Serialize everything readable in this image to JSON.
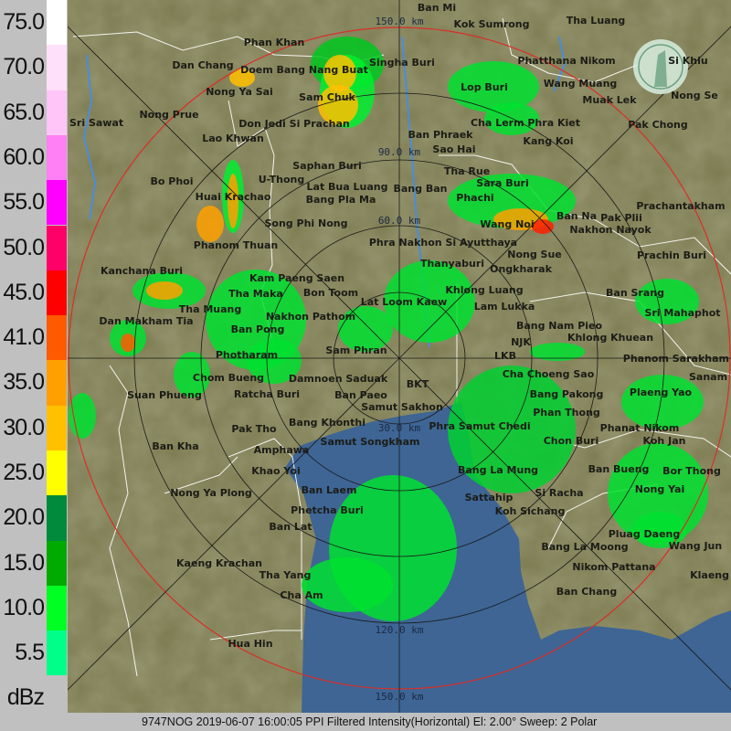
{
  "legend": {
    "unit": "dBz",
    "bins": [
      {
        "label": "75.0",
        "color": "#ffffff"
      },
      {
        "label": "70.0",
        "color": "#ffe0fa"
      },
      {
        "label": "65.0",
        "color": "#ffc4f8"
      },
      {
        "label": "60.0",
        "color": "#ff80f4"
      },
      {
        "label": "55.0",
        "color": "#ff00ff"
      },
      {
        "label": "50.0",
        "color": "#ff0068"
      },
      {
        "label": "45.0",
        "color": "#ff0000"
      },
      {
        "label": "41.0",
        "color": "#ff5a00"
      },
      {
        "label": "35.0",
        "color": "#ffa000"
      },
      {
        "label": "30.0",
        "color": "#ffc000"
      },
      {
        "label": "25.0",
        "color": "#ffff00"
      },
      {
        "label": "20.0",
        "color": "#008a3c"
      },
      {
        "label": "15.0",
        "color": "#00aa00"
      },
      {
        "label": "10.0",
        "color": "#00ff22"
      },
      {
        "label": "5.5",
        "color": "#00ff88"
      }
    ]
  },
  "caption": "9747NOG 2019-06-07 16:00:05 PPI Filtered Intensity(Horizontal)  El: 2.00°  Sweep: 2 Polar",
  "range_labels": [
    "150.0 km",
    "90.0 km",
    "60.0 km",
    "30.0 km",
    "120.0 km",
    "150.0 km"
  ],
  "colors": {
    "land": "#7b7a50",
    "sea": "#3e6594",
    "max_range_ring": "#d8302a",
    "ring": "#1a1a1a",
    "border": "#ffffff",
    "river": "#4a8cdc"
  },
  "logo": "radar-agency-seal-icon",
  "places": [
    "Dan Chang",
    "Phan Khan",
    "Doem Bang Nang Buat",
    "Nong Ya Sai",
    "Sam Chuk",
    "Don Jedi Si Prachan",
    "Nong Prue",
    "Sri Sawat",
    "Lao Khwan",
    "Bo Phoi",
    "U-Thong",
    "Huai Krachao",
    "Saphan Buri",
    "Bang Pla Ma",
    "Phanom Thuan",
    "Song Phi Nong",
    "Kanchana Buri",
    "Kam Paeng Saen",
    "Tha Maka",
    "Tha Muang",
    "Bon Toom",
    "Dan Makham Tia",
    "Ban Pong",
    "Nakhon Pathom",
    "Photharam",
    "Sam Phran",
    "Ban Mi",
    "Kok Sumrong",
    "Tha Luang",
    "Phatthana Nikom",
    "Si Khiu",
    "Singha Buri",
    "Wang Muang",
    "Muak Lek",
    "Nong Se",
    "Lop Buri",
    "Pak Chong",
    "Cha Lerm Phra Kiet",
    "Ban Phraek",
    "Sao Hai",
    "Kang Koi",
    "Tha Rue",
    "Sara Buri",
    "Phachi",
    "Bang Ban",
    "Phra Nakhon Si Ayutthaya",
    "Ban Na",
    "Nakhon Nayok",
    "Pak Plii",
    "Prachantakham",
    "Wang Noi",
    "Nong Sue",
    "Ongkharak",
    "Khlong Luang",
    "Prachin Buri",
    "Thanyaburi",
    "Lam Lukka",
    "Ban Srang",
    "Bang Nam Pieo",
    "Sri Mahaphot",
    "NJK",
    "LKB",
    "Khlong Khuean",
    "Phanom Sarakham",
    "Cha Choeng Sao",
    "Lat Bua Luang",
    "Lat Loom Kaew",
    "Chom Bueng",
    "Suan Phueng",
    "Ratcha Buri",
    "Damnoen Saduak",
    "Ban Paeo",
    "Samut Sakhon",
    "Bang Khonthi",
    "Samut Songkham",
    "Amphawa",
    "Pak Tho",
    "Ban Kha",
    "Khao Yoi",
    "Nong Ya Plong",
    "Ban Laem",
    "Phetcha Buri",
    "Ban Lat",
    "Kaeng Krachan",
    "Tha Yang",
    "Cha Am",
    "Hua Hin",
    "BKT",
    "Phra Samut Chedi",
    "Bang Pakong",
    "Plaeng Yao",
    "Sanam",
    "Phan Thong",
    "Phanat Nikom",
    "Koh Jan",
    "Chon Buri",
    "Ban Bueng",
    "Bor Thong",
    "Bang La Mung",
    "Si Racha",
    "Koh Sichang",
    "Sattahip",
    "Nong Yai",
    "Pluag Daeng",
    "Wang Jun",
    "Bang La Moong",
    "Nikom Pattana",
    "Ban Chang",
    "Klaeng"
  ]
}
